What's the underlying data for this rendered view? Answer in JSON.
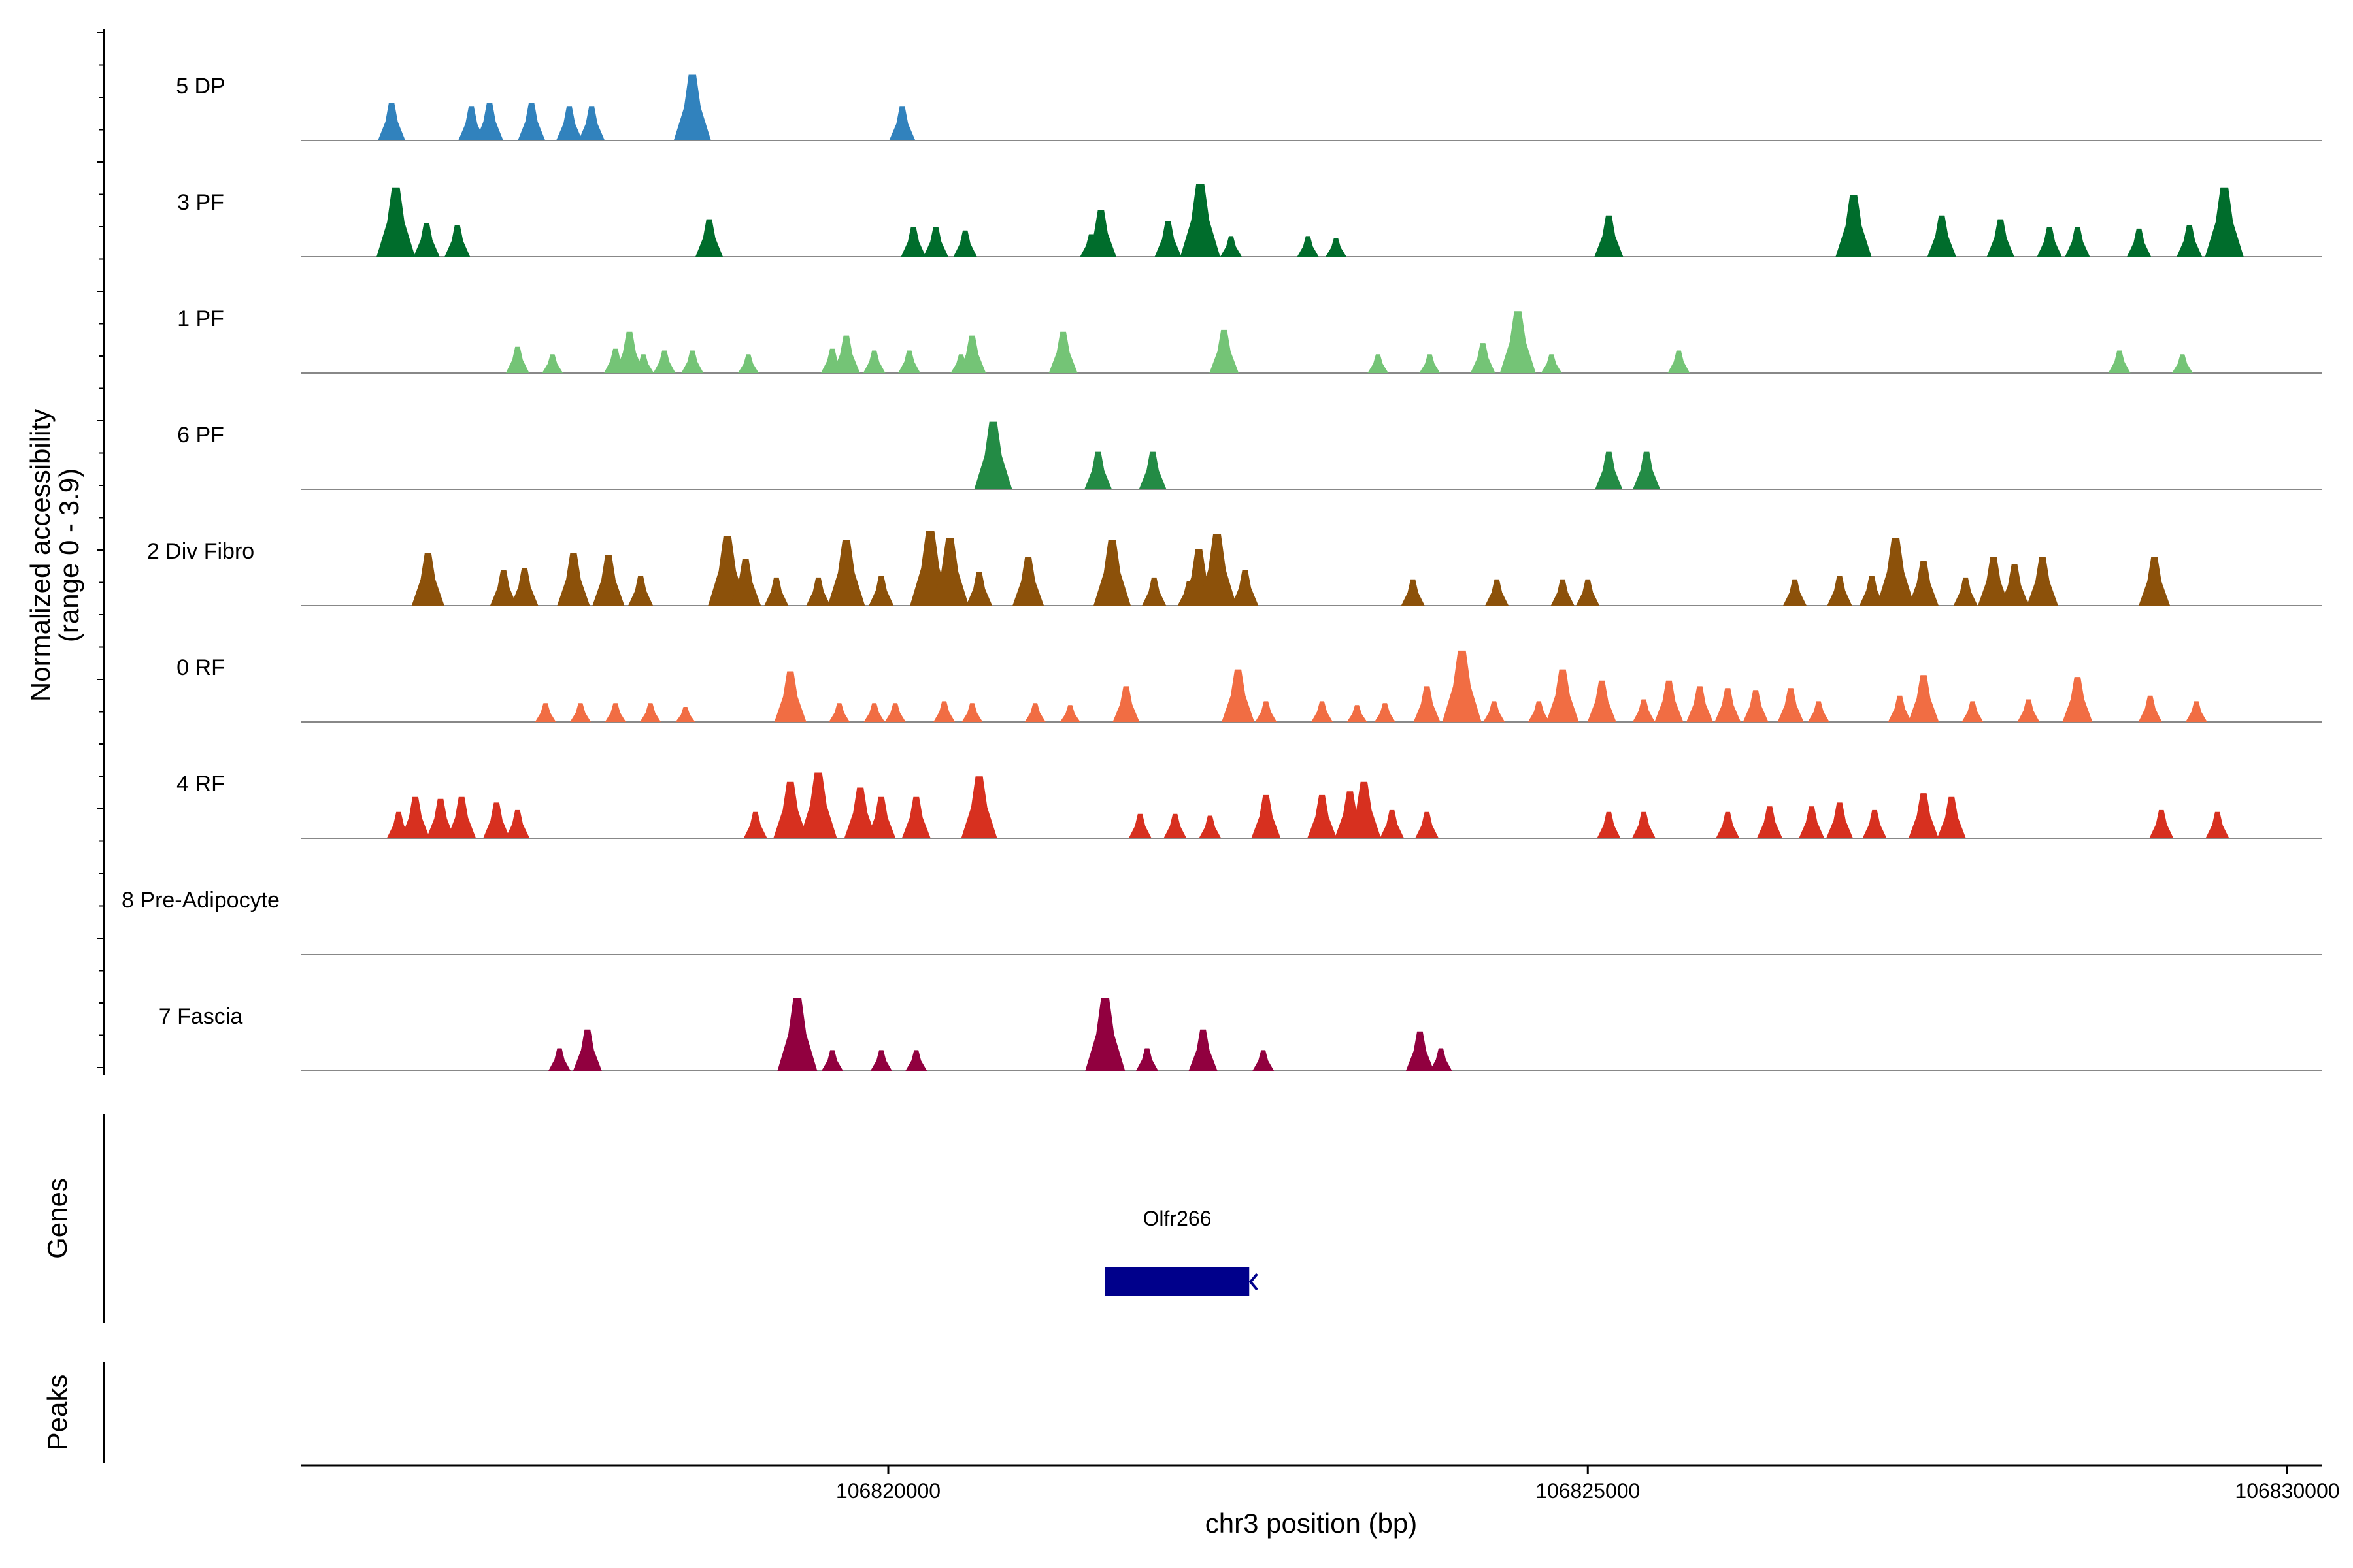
{
  "chart_data": {
    "type": "area",
    "title": "",
    "region": {
      "chromosome": "chr3",
      "start": 106815800,
      "end": 106830250
    },
    "ylabel": [
      "Normalized accessibility",
      "(range 0 - 3.9)"
    ],
    "ylim": [
      0,
      3.9
    ],
    "xlabel": "chr3 position (bp)",
    "xticks": [
      106820000,
      106825000,
      106830000
    ],
    "xtick_labels": [
      "106820000",
      "106825000",
      "106830000"
    ],
    "panels": {
      "genes_label": "Genes",
      "peaks_label": "Peaks"
    },
    "genes": [
      {
        "name": "Olfr266",
        "start": 106821550,
        "end": 106822580,
        "strand": "-",
        "color": "#00008B"
      }
    ],
    "series": [
      {
        "name": "5 DP",
        "color": "#3182BD",
        "peaks": [
          [
            106816450,
            2
          ],
          [
            106817020,
            1.8
          ],
          [
            106817150,
            2
          ],
          [
            106817450,
            2
          ],
          [
            106817720,
            1.8
          ],
          [
            106817880,
            1.8
          ],
          [
            106818600,
            3.5
          ],
          [
            106820100,
            1.8
          ]
        ]
      },
      {
        "name": "3 PF",
        "color": "#006D2C",
        "peaks": [
          [
            106816480,
            3.7
          ],
          [
            106816700,
            1.8
          ],
          [
            106816920,
            1.7
          ],
          [
            106818720,
            2
          ],
          [
            106820180,
            1.6
          ],
          [
            106820340,
            1.6
          ],
          [
            106820550,
            1.4
          ],
          [
            106821450,
            1.2
          ],
          [
            106821520,
            2.5
          ],
          [
            106822000,
            1.9
          ],
          [
            106822230,
            3.9
          ],
          [
            106822450,
            1.1
          ],
          [
            106823000,
            1.1
          ],
          [
            106823200,
            1
          ],
          [
            106825150,
            2.2
          ],
          [
            106826900,
            3.3
          ],
          [
            106827530,
            2.2
          ],
          [
            106827950,
            2
          ],
          [
            106828300,
            1.6
          ],
          [
            106828500,
            1.6
          ],
          [
            106828940,
            1.5
          ],
          [
            106829300,
            1.7
          ],
          [
            106829550,
            3.7
          ]
        ]
      },
      {
        "name": "1 PF",
        "color": "#74C476",
        "peaks": [
          [
            106817350,
            1.4
          ],
          [
            106817600,
            1
          ],
          [
            106818050,
            1.3
          ],
          [
            106818150,
            2.2
          ],
          [
            106818250,
            1
          ],
          [
            106818400,
            1.2
          ],
          [
            106818600,
            1.2
          ],
          [
            106819000,
            1
          ],
          [
            106819600,
            1.3
          ],
          [
            106819700,
            2
          ],
          [
            106819900,
            1.2
          ],
          [
            106820150,
            1.2
          ],
          [
            106820520,
            1
          ],
          [
            106820600,
            2
          ],
          [
            106821250,
            2.2
          ],
          [
            106822400,
            2.3
          ],
          [
            106823500,
            1
          ],
          [
            106823870,
            1
          ],
          [
            106824250,
            1.6
          ],
          [
            106824500,
            3.3
          ],
          [
            106824740,
            1
          ],
          [
            106825650,
            1.2
          ],
          [
            106828800,
            1.2
          ],
          [
            106829250,
            1
          ]
        ]
      },
      {
        "name": "6 PF",
        "color": "#238B45",
        "peaks": [
          [
            106820750,
            3.6
          ],
          [
            106821500,
            2
          ],
          [
            106821890,
            2
          ],
          [
            106825150,
            2
          ],
          [
            106825420,
            2
          ]
        ]
      },
      {
        "name": "2 Div Fibro",
        "color": "#8C510A",
        "peaks": [
          [
            106816710,
            2.8
          ],
          [
            106817250,
            1.9
          ],
          [
            106817400,
            2
          ],
          [
            106817750,
            2.8
          ],
          [
            106818000,
            2.7
          ],
          [
            106818230,
            1.6
          ],
          [
            106818850,
            3.7
          ],
          [
            106818980,
            2.5
          ],
          [
            106819200,
            1.5
          ],
          [
            106819500,
            1.5
          ],
          [
            106819700,
            3.5
          ],
          [
            106819950,
            1.6
          ],
          [
            106820300,
            4
          ],
          [
            106820440,
            3.6
          ],
          [
            106820650,
            1.8
          ],
          [
            106821000,
            2.6
          ],
          [
            106821600,
            3.5
          ],
          [
            106821900,
            1.5
          ],
          [
            106822150,
            1.3
          ],
          [
            106822220,
            3
          ],
          [
            106822350,
            3.8
          ],
          [
            106822550,
            1.9
          ],
          [
            106823750,
            1.4
          ],
          [
            106824350,
            1.4
          ],
          [
            106824820,
            1.4
          ],
          [
            106825000,
            1.4
          ],
          [
            106826480,
            1.4
          ],
          [
            106826800,
            1.6
          ],
          [
            106827030,
            1.6
          ],
          [
            106827200,
            3.6
          ],
          [
            106827400,
            2.4
          ],
          [
            106827700,
            1.5
          ],
          [
            106827900,
            2.6
          ],
          [
            106828050,
            2.2
          ],
          [
            106828250,
            2.6
          ],
          [
            106829050,
            2.6
          ]
        ]
      },
      {
        "name": "0 RF",
        "color": "#F16D43",
        "peaks": [
          [
            106817550,
            1
          ],
          [
            106817800,
            1
          ],
          [
            106818050,
            1
          ],
          [
            106818300,
            1
          ],
          [
            106818550,
            0.8
          ],
          [
            106819300,
            2.7
          ],
          [
            106819650,
            1
          ],
          [
            106819900,
            1
          ],
          [
            106820050,
            1
          ],
          [
            106820400,
            1.1
          ],
          [
            106820600,
            1
          ],
          [
            106821050,
            1
          ],
          [
            106821300,
            0.9
          ],
          [
            106821700,
            1.9
          ],
          [
            106822500,
            2.8
          ],
          [
            106822700,
            1.1
          ],
          [
            106823100,
            1.1
          ],
          [
            106823350,
            0.9
          ],
          [
            106823550,
            1
          ],
          [
            106823850,
            1.9
          ],
          [
            106824100,
            3.8
          ],
          [
            106824330,
            1.1
          ],
          [
            106824650,
            1.1
          ],
          [
            106824820,
            2.8
          ],
          [
            106825100,
            2.2
          ],
          [
            106825400,
            1.2
          ],
          [
            106825580,
            2.2
          ],
          [
            106825800,
            1.9
          ],
          [
            106826000,
            1.8
          ],
          [
            106826200,
            1.7
          ],
          [
            106826450,
            1.8
          ],
          [
            106826650,
            1.1
          ],
          [
            106827230,
            1.4
          ],
          [
            106827400,
            2.5
          ],
          [
            106827750,
            1.1
          ],
          [
            106828150,
            1.2
          ],
          [
            106828500,
            2.4
          ],
          [
            106829020,
            1.4
          ],
          [
            106829350,
            1.1
          ]
        ]
      },
      {
        "name": "4 RF",
        "color": "#D7301F",
        "peaks": [
          [
            106816500,
            1.4
          ],
          [
            106816620,
            2.2
          ],
          [
            106816800,
            2.1
          ],
          [
            106816950,
            2.2
          ],
          [
            106817200,
            1.9
          ],
          [
            106817350,
            1.5
          ],
          [
            106819050,
            1.4
          ],
          [
            106819300,
            3
          ],
          [
            106819500,
            3.5
          ],
          [
            106819800,
            2.7
          ],
          [
            106819950,
            2.2
          ],
          [
            106820200,
            2.2
          ],
          [
            106820650,
            3.3
          ],
          [
            106821800,
            1.3
          ],
          [
            106822050,
            1.3
          ],
          [
            106822300,
            1.2
          ],
          [
            106822700,
            2.3
          ],
          [
            106823100,
            2.3
          ],
          [
            106823300,
            2.5
          ],
          [
            106823400,
            3
          ],
          [
            106823600,
            1.5
          ],
          [
            106823850,
            1.4
          ],
          [
            106825150,
            1.4
          ],
          [
            106825400,
            1.4
          ],
          [
            106826000,
            1.4
          ],
          [
            106826300,
            1.7
          ],
          [
            106826600,
            1.7
          ],
          [
            106826800,
            1.9
          ],
          [
            106827050,
            1.5
          ],
          [
            106827400,
            2.4
          ],
          [
            106827600,
            2.2
          ],
          [
            106829100,
            1.5
          ],
          [
            106829500,
            1.4
          ]
        ]
      },
      {
        "name": "8 Pre-Adipocyte",
        "color": "#6A3D9A",
        "peaks": []
      },
      {
        "name": "7 Fascia",
        "color": "#91003F",
        "peaks": [
          [
            106817650,
            1.2
          ],
          [
            106817850,
            2.2
          ],
          [
            106819350,
            3.9
          ],
          [
            106819600,
            1.1
          ],
          [
            106819950,
            1.1
          ],
          [
            106820200,
            1.1
          ],
          [
            106821550,
            3.9
          ],
          [
            106821850,
            1.2
          ],
          [
            106822250,
            2.2
          ],
          [
            106822680,
            1.1
          ],
          [
            106823800,
            2.1
          ],
          [
            106823950,
            1.2
          ]
        ]
      }
    ]
  }
}
